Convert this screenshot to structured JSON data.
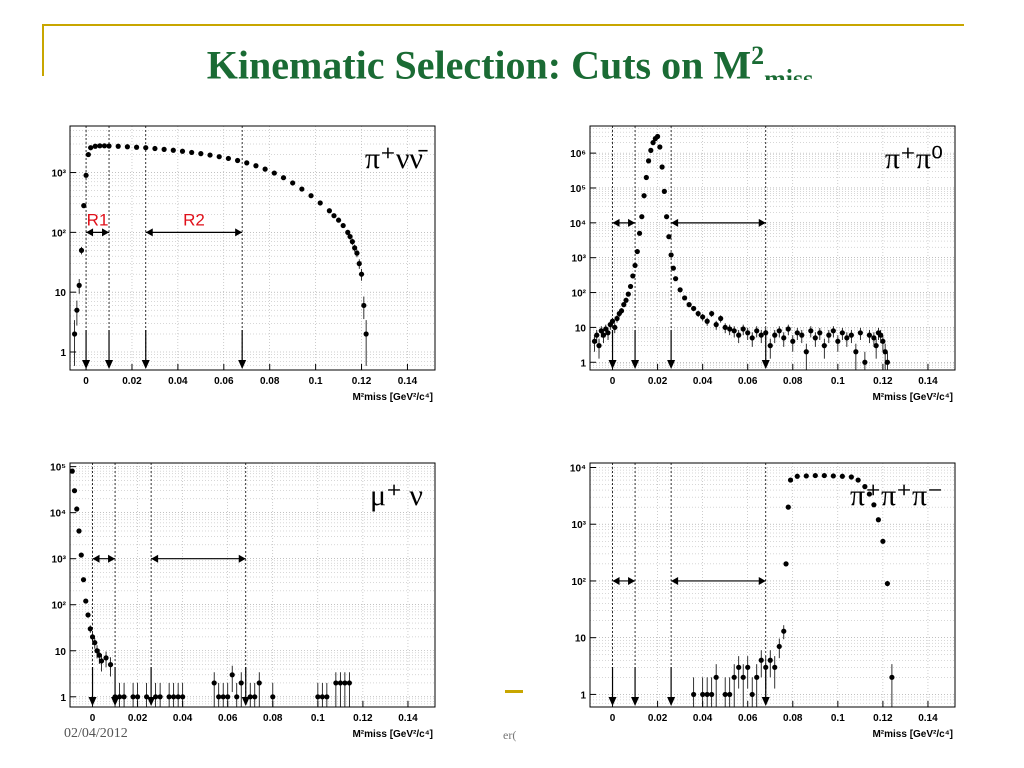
{
  "slide": {
    "title": {
      "main": "Kinematic Selection: Cuts on M",
      "sup": "2",
      "sub": "miss"
    },
    "date": "02/04/2012",
    "footer_fragment": "er("
  },
  "chart_data": [
    {
      "id": "pinunu",
      "type": "scatter",
      "process_label": "π⁺νν̄",
      "xlabel": "M²miss [GeV²/c⁴]",
      "ylog": true,
      "xlim": [
        -0.007,
        0.152
      ],
      "ylim": [
        0.5,
        6000
      ],
      "yticks": [
        {
          "v": 1,
          "t": "1"
        },
        {
          "v": 10,
          "t": "10"
        },
        {
          "v": 100,
          "t": "10²"
        },
        {
          "v": 1000,
          "t": "10³"
        }
      ],
      "xticks": [
        0,
        0.02,
        0.04,
        0.06,
        0.08,
        0.1,
        0.12,
        0.14
      ],
      "xtick_labels": [
        "0",
        "0.02",
        "0.04",
        "0.06",
        "0.08",
        "0.1",
        "0.12",
        "0.14"
      ],
      "cut_lines": [
        0,
        0.01,
        0.026,
        0.068
      ],
      "regions": [
        {
          "x1": 0,
          "x2": 0.01,
          "y": 100,
          "label": "R1"
        },
        {
          "x1": 0.026,
          "x2": 0.068,
          "y": 100,
          "label": "R2"
        }
      ],
      "region_label_color": "#e0101a",
      "points": [
        [
          -0.005,
          2
        ],
        [
          -0.004,
          5
        ],
        [
          -0.003,
          13
        ],
        [
          -0.002,
          50
        ],
        [
          -0.001,
          280
        ],
        [
          0,
          900
        ],
        [
          0.001,
          2000
        ],
        [
          0.002,
          2600
        ],
        [
          0.004,
          2750
        ],
        [
          0.006,
          2800
        ],
        [
          0.008,
          2800
        ],
        [
          0.01,
          2780
        ],
        [
          0.014,
          2750
        ],
        [
          0.018,
          2700
        ],
        [
          0.022,
          2650
        ],
        [
          0.026,
          2600
        ],
        [
          0.03,
          2520
        ],
        [
          0.034,
          2440
        ],
        [
          0.038,
          2360
        ],
        [
          0.042,
          2270
        ],
        [
          0.046,
          2170
        ],
        [
          0.05,
          2070
        ],
        [
          0.054,
          1960
        ],
        [
          0.058,
          1840
        ],
        [
          0.062,
          1720
        ],
        [
          0.066,
          1590
        ],
        [
          0.07,
          1450
        ],
        [
          0.074,
          1300
        ],
        [
          0.078,
          1140
        ],
        [
          0.082,
          980
        ],
        [
          0.086,
          820
        ],
        [
          0.09,
          670
        ],
        [
          0.094,
          530
        ],
        [
          0.098,
          410
        ],
        [
          0.102,
          310
        ],
        [
          0.106,
          230
        ],
        [
          0.108,
          190
        ],
        [
          0.11,
          160
        ],
        [
          0.112,
          130
        ],
        [
          0.114,
          100
        ],
        [
          0.115,
          85
        ],
        [
          0.116,
          70
        ],
        [
          0.117,
          55
        ],
        [
          0.118,
          45
        ],
        [
          0.119,
          30
        ],
        [
          0.12,
          20
        ],
        [
          0.121,
          6
        ],
        [
          0.122,
          2
        ]
      ]
    },
    {
      "id": "pipi0",
      "type": "scatter",
      "process_label": "π⁺π⁰",
      "xlabel": "M²miss [GeV²/c⁴]",
      "ylog": true,
      "xlim": [
        -0.01,
        0.152
      ],
      "ylim": [
        0.6,
        6000000
      ],
      "yticks": [
        {
          "v": 1,
          "t": "1"
        },
        {
          "v": 10,
          "t": "10"
        },
        {
          "v": 100,
          "t": "10²"
        },
        {
          "v": 1000,
          "t": "10³"
        },
        {
          "v": 10000,
          "t": "10⁴"
        },
        {
          "v": 100000,
          "t": "10⁵"
        },
        {
          "v": 1000000,
          "t": "10⁶"
        }
      ],
      "xticks": [
        0,
        0.02,
        0.04,
        0.06,
        0.08,
        0.1,
        0.12,
        0.14
      ],
      "xtick_labels": [
        "0",
        "0.02",
        "0.04",
        "0.06",
        "0.08",
        "0.1",
        "0.12",
        "0.14"
      ],
      "cut_lines": [
        0,
        0.01,
        0.026,
        0.068
      ],
      "regions": [
        {
          "x1": 0,
          "x2": 0.01,
          "y": 10000
        },
        {
          "x1": 0.026,
          "x2": 0.068,
          "y": 10000
        }
      ],
      "points": [
        [
          -0.008,
          4
        ],
        [
          -0.007,
          6
        ],
        [
          -0.006,
          3
        ],
        [
          -0.005,
          8
        ],
        [
          -0.004,
          6
        ],
        [
          -0.003,
          9
        ],
        [
          -0.002,
          7
        ],
        [
          -0.001,
          12
        ],
        [
          0,
          15
        ],
        [
          0.001,
          10
        ],
        [
          0.002,
          18
        ],
        [
          0.003,
          25
        ],
        [
          0.004,
          30
        ],
        [
          0.005,
          45
        ],
        [
          0.006,
          60
        ],
        [
          0.007,
          90
        ],
        [
          0.008,
          150
        ],
        [
          0.009,
          300
        ],
        [
          0.01,
          600
        ],
        [
          0.011,
          1500
        ],
        [
          0.012,
          5000
        ],
        [
          0.013,
          15000
        ],
        [
          0.014,
          60000
        ],
        [
          0.015,
          200000
        ],
        [
          0.016,
          600000
        ],
        [
          0.017,
          1200000
        ],
        [
          0.018,
          2000000
        ],
        [
          0.019,
          2600000
        ],
        [
          0.02,
          3000000
        ],
        [
          0.021,
          1500000
        ],
        [
          0.022,
          400000
        ],
        [
          0.023,
          80000
        ],
        [
          0.024,
          15000
        ],
        [
          0.025,
          4000
        ],
        [
          0.026,
          1200
        ],
        [
          0.027,
          500
        ],
        [
          0.028,
          250
        ],
        [
          0.03,
          120
        ],
        [
          0.032,
          70
        ],
        [
          0.034,
          45
        ],
        [
          0.036,
          35
        ],
        [
          0.038,
          25
        ],
        [
          0.04,
          20
        ],
        [
          0.042,
          15
        ],
        [
          0.044,
          25
        ],
        [
          0.046,
          12
        ],
        [
          0.048,
          18
        ],
        [
          0.05,
          10
        ],
        [
          0.052,
          9
        ],
        [
          0.054,
          8
        ],
        [
          0.056,
          6
        ],
        [
          0.058,
          9
        ],
        [
          0.06,
          7
        ],
        [
          0.062,
          5
        ],
        [
          0.064,
          8
        ],
        [
          0.066,
          6
        ],
        [
          0.068,
          7
        ],
        [
          0.07,
          3
        ],
        [
          0.072,
          6
        ],
        [
          0.074,
          8
        ],
        [
          0.076,
          5
        ],
        [
          0.078,
          9
        ],
        [
          0.08,
          4
        ],
        [
          0.082,
          7
        ],
        [
          0.084,
          6
        ],
        [
          0.086,
          2
        ],
        [
          0.088,
          8
        ],
        [
          0.09,
          5
        ],
        [
          0.092,
          7
        ],
        [
          0.094,
          3
        ],
        [
          0.096,
          6
        ],
        [
          0.098,
          8
        ],
        [
          0.1,
          4
        ],
        [
          0.102,
          7
        ],
        [
          0.104,
          5
        ],
        [
          0.106,
          6
        ],
        [
          0.108,
          2
        ],
        [
          0.11,
          7
        ],
        [
          0.112,
          1
        ],
        [
          0.114,
          6
        ],
        [
          0.116,
          5
        ],
        [
          0.117,
          3
        ],
        [
          0.118,
          7
        ],
        [
          0.119,
          6
        ],
        [
          0.12,
          4
        ],
        [
          0.121,
          2
        ],
        [
          0.122,
          1
        ]
      ]
    },
    {
      "id": "munu",
      "type": "scatter",
      "process_label": "μ⁺ ν",
      "xlabel": "M²miss [GeV²/c⁴]",
      "ylog": true,
      "xlim": [
        -0.01,
        0.152
      ],
      "ylim": [
        0.6,
        120000
      ],
      "yticks": [
        {
          "v": 1,
          "t": "1"
        },
        {
          "v": 10,
          "t": "10"
        },
        {
          "v": 100,
          "t": "10²"
        },
        {
          "v": 1000,
          "t": "10³"
        },
        {
          "v": 10000,
          "t": "10⁴"
        },
        {
          "v": 100000,
          "t": "10⁵"
        }
      ],
      "xticks": [
        0,
        0.02,
        0.04,
        0.06,
        0.08,
        0.1,
        0.12,
        0.14
      ],
      "xtick_labels": [
        "0",
        "0.02",
        "0.04",
        "0.06",
        "0.08",
        "0.1",
        "0.12",
        "0.14"
      ],
      "cut_lines": [
        0,
        0.01,
        0.026,
        0.068
      ],
      "regions": [
        {
          "x1": 0,
          "x2": 0.01,
          "y": 1000
        },
        {
          "x1": 0.026,
          "x2": 0.068,
          "y": 1000
        }
      ],
      "points": [
        [
          -0.009,
          80000
        ],
        [
          -0.008,
          30000
        ],
        [
          -0.007,
          12000
        ],
        [
          -0.006,
          4000
        ],
        [
          -0.005,
          1200
        ],
        [
          -0.004,
          350
        ],
        [
          -0.003,
          120
        ],
        [
          -0.002,
          60
        ],
        [
          -0.001,
          30
        ],
        [
          0,
          20
        ],
        [
          0.001,
          15
        ],
        [
          0.002,
          10
        ],
        [
          0.003,
          8
        ],
        [
          0.004,
          6
        ],
        [
          0.006,
          7
        ],
        [
          0.008,
          5
        ],
        [
          0.01,
          1
        ],
        [
          0.012,
          1
        ],
        [
          0.014,
          1
        ],
        [
          0.018,
          1
        ],
        [
          0.02,
          1
        ],
        [
          0.024,
          1
        ],
        [
          0.028,
          1
        ],
        [
          0.03,
          1
        ],
        [
          0.034,
          1
        ],
        [
          0.036,
          1
        ],
        [
          0.038,
          1
        ],
        [
          0.04,
          1
        ],
        [
          0.054,
          2
        ],
        [
          0.056,
          1
        ],
        [
          0.058,
          1
        ],
        [
          0.06,
          1
        ],
        [
          0.062,
          3
        ],
        [
          0.064,
          1
        ],
        [
          0.066,
          2
        ],
        [
          0.07,
          1
        ],
        [
          0.072,
          1
        ],
        [
          0.074,
          2
        ],
        [
          0.08,
          1
        ],
        [
          0.1,
          1
        ],
        [
          0.102,
          1
        ],
        [
          0.104,
          1
        ],
        [
          0.108,
          2
        ],
        [
          0.11,
          2
        ],
        [
          0.112,
          2
        ],
        [
          0.114,
          2
        ]
      ]
    },
    {
      "id": "pipipi",
      "type": "scatter",
      "process_label": "π⁺π⁺π⁻",
      "xlabel": "M²miss [GeV²/c⁴]",
      "ylog": true,
      "xlim": [
        -0.01,
        0.152
      ],
      "ylim": [
        0.6,
        12000
      ],
      "yticks": [
        {
          "v": 1,
          "t": "1"
        },
        {
          "v": 10,
          "t": "10"
        },
        {
          "v": 100,
          "t": "10²"
        },
        {
          "v": 1000,
          "t": "10³"
        },
        {
          "v": 10000,
          "t": "10⁴"
        }
      ],
      "xticks": [
        0,
        0.02,
        0.04,
        0.06,
        0.08,
        0.1,
        0.12,
        0.14
      ],
      "xtick_labels": [
        "0",
        "0.02",
        "0.04",
        "0.06",
        "0.08",
        "0.1",
        "0.12",
        "0.14"
      ],
      "cut_lines": [
        0,
        0.01,
        0.026,
        0.068
      ],
      "regions": [
        {
          "x1": 0,
          "x2": 0.01,
          "y": 100
        },
        {
          "x1": 0.026,
          "x2": 0.068,
          "y": 100
        }
      ],
      "points": [
        [
          0.036,
          1
        ],
        [
          0.04,
          1
        ],
        [
          0.042,
          1
        ],
        [
          0.044,
          1
        ],
        [
          0.046,
          2
        ],
        [
          0.05,
          1
        ],
        [
          0.052,
          1
        ],
        [
          0.054,
          2
        ],
        [
          0.056,
          3
        ],
        [
          0.058,
          2
        ],
        [
          0.06,
          3
        ],
        [
          0.062,
          1
        ],
        [
          0.064,
          2
        ],
        [
          0.066,
          4
        ],
        [
          0.068,
          3
        ],
        [
          0.07,
          4
        ],
        [
          0.072,
          3
        ],
        [
          0.074,
          7
        ],
        [
          0.076,
          13
        ],
        [
          0.077,
          200
        ],
        [
          0.078,
          2000
        ],
        [
          0.079,
          6000
        ],
        [
          0.082,
          7000
        ],
        [
          0.086,
          7100
        ],
        [
          0.09,
          7200
        ],
        [
          0.094,
          7200
        ],
        [
          0.098,
          7100
        ],
        [
          0.102,
          7000
        ],
        [
          0.106,
          6800
        ],
        [
          0.109,
          6000
        ],
        [
          0.112,
          4600
        ],
        [
          0.114,
          3400
        ],
        [
          0.116,
          2200
        ],
        [
          0.118,
          1200
        ],
        [
          0.12,
          500
        ],
        [
          0.122,
          90
        ],
        [
          0.124,
          2
        ]
      ]
    }
  ]
}
